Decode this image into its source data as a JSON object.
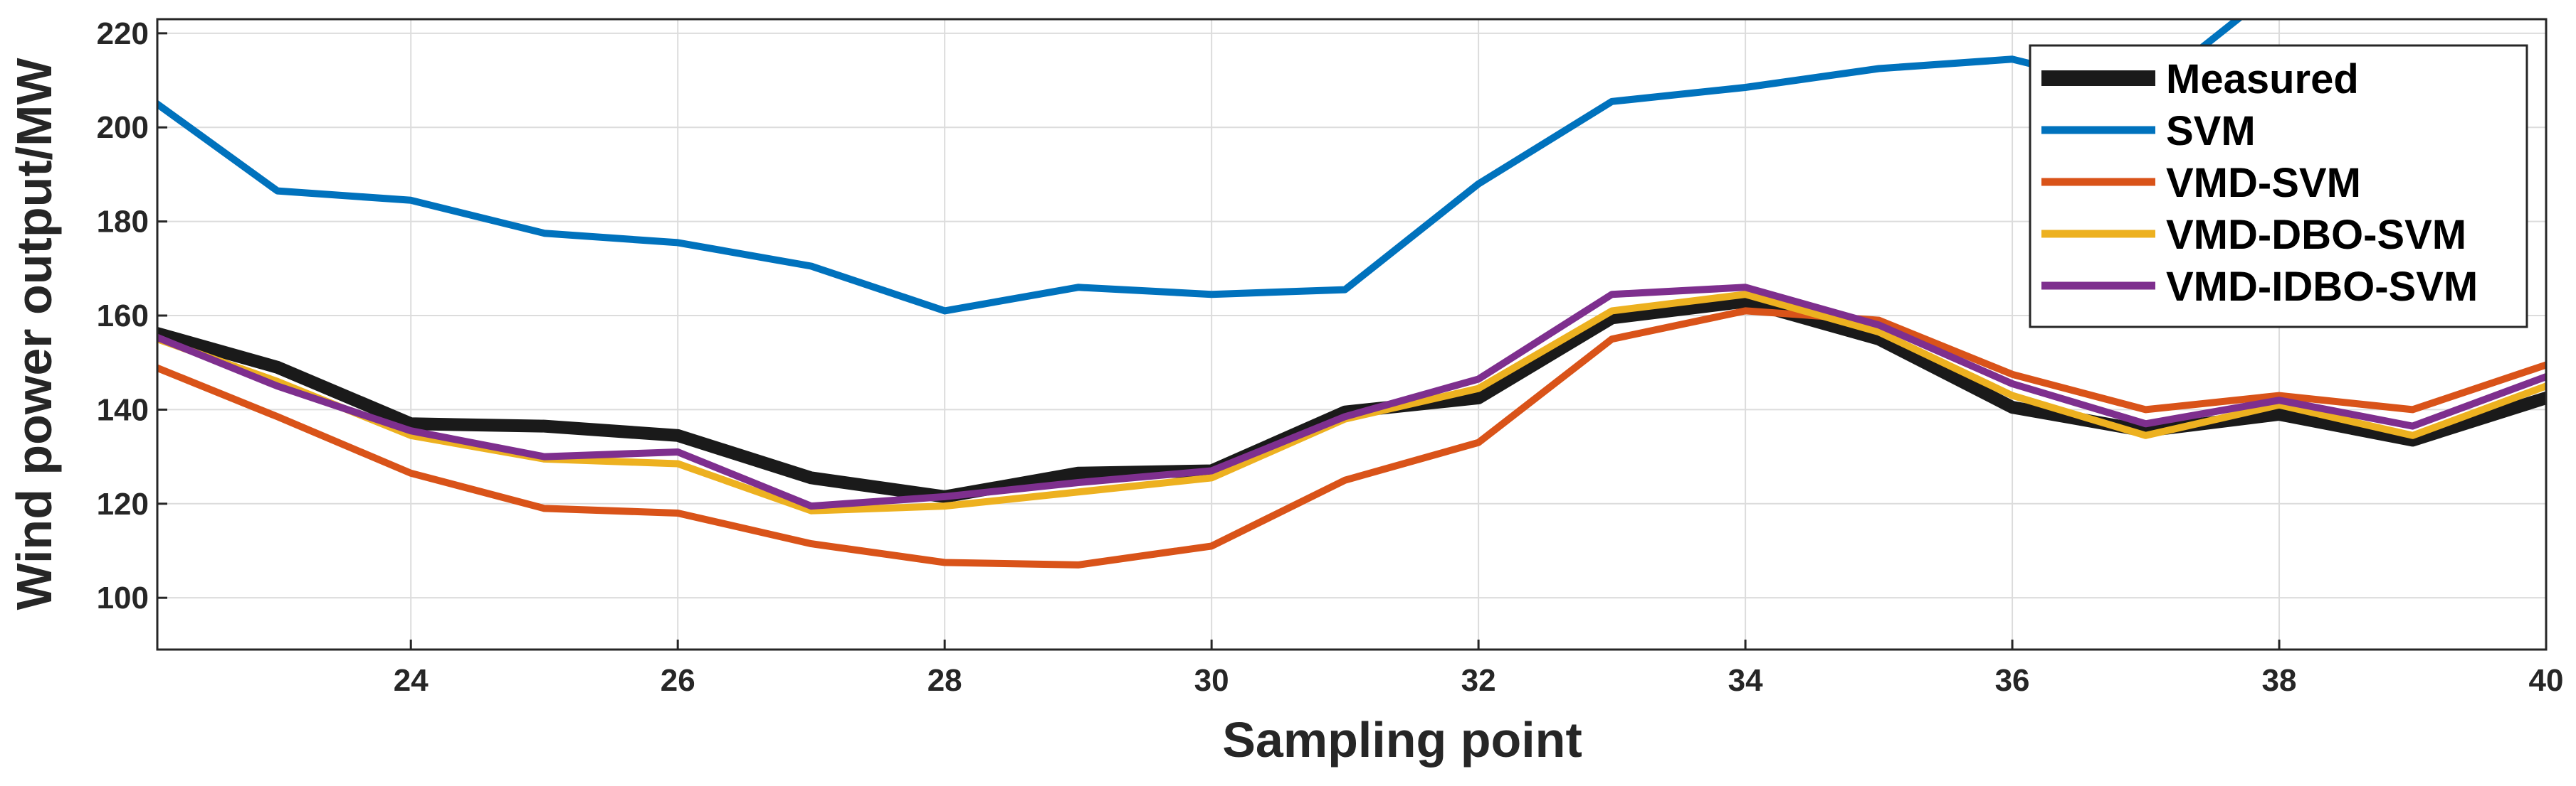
{
  "chart_data": {
    "type": "line",
    "title": "",
    "xlabel": "Sampling point",
    "ylabel": "Wind power output/MW",
    "xlim": [
      22.1,
      40.0
    ],
    "ylim": [
      89,
      223
    ],
    "xticks": [
      24,
      26,
      28,
      30,
      32,
      34,
      36,
      38,
      40
    ],
    "yticks": [
      100,
      120,
      140,
      160,
      180,
      200,
      220
    ],
    "grid": true,
    "legend_position": "top-right",
    "x": [
      22,
      23,
      24,
      25,
      26,
      27,
      28,
      29,
      30,
      31,
      32,
      33,
      34,
      35,
      36,
      37,
      38,
      39,
      40
    ],
    "series": [
      {
        "name": "Measured",
        "color": "#1a1a1a",
        "values": [
          157,
          149,
          137,
          136.5,
          134.5,
          125.5,
          121.5,
          126.5,
          127,
          139.5,
          142.5,
          159.5,
          163,
          155,
          140.5,
          135.5,
          139,
          133.5,
          142.5
        ]
      },
      {
        "name": "SVM",
        "color": "#0072bd",
        "values": [
          207,
          186.5,
          184.5,
          177.5,
          175.5,
          170.5,
          161,
          166,
          164.5,
          165.5,
          188,
          205.5,
          208.5,
          212.5,
          214.5,
          207.5,
          230,
          232,
          234
        ]
      },
      {
        "name": "VMD-SVM",
        "color": "#d95319",
        "values": [
          150,
          138.5,
          126.5,
          119,
          118,
          111.5,
          107.5,
          107,
          111,
          125,
          133,
          155,
          161,
          159,
          147.5,
          140,
          143,
          140,
          149.5
        ]
      },
      {
        "name": "VMD-DBO-SVM",
        "color": "#edb120",
        "values": [
          156,
          146,
          134.5,
          129.5,
          128.5,
          118.5,
          119.5,
          122.5,
          125.5,
          138,
          144.5,
          161,
          164.5,
          156.5,
          143,
          134.5,
          141,
          134.5,
          145
        ]
      },
      {
        "name": "VMD-IDBO-SVM",
        "color": "#7e2f8e",
        "values": [
          156.5,
          145,
          135.5,
          130,
          131,
          119.5,
          121.5,
          124.5,
          127,
          138.5,
          146.5,
          164.5,
          166,
          158,
          145.5,
          137,
          142,
          136.5,
          147
        ]
      }
    ]
  }
}
